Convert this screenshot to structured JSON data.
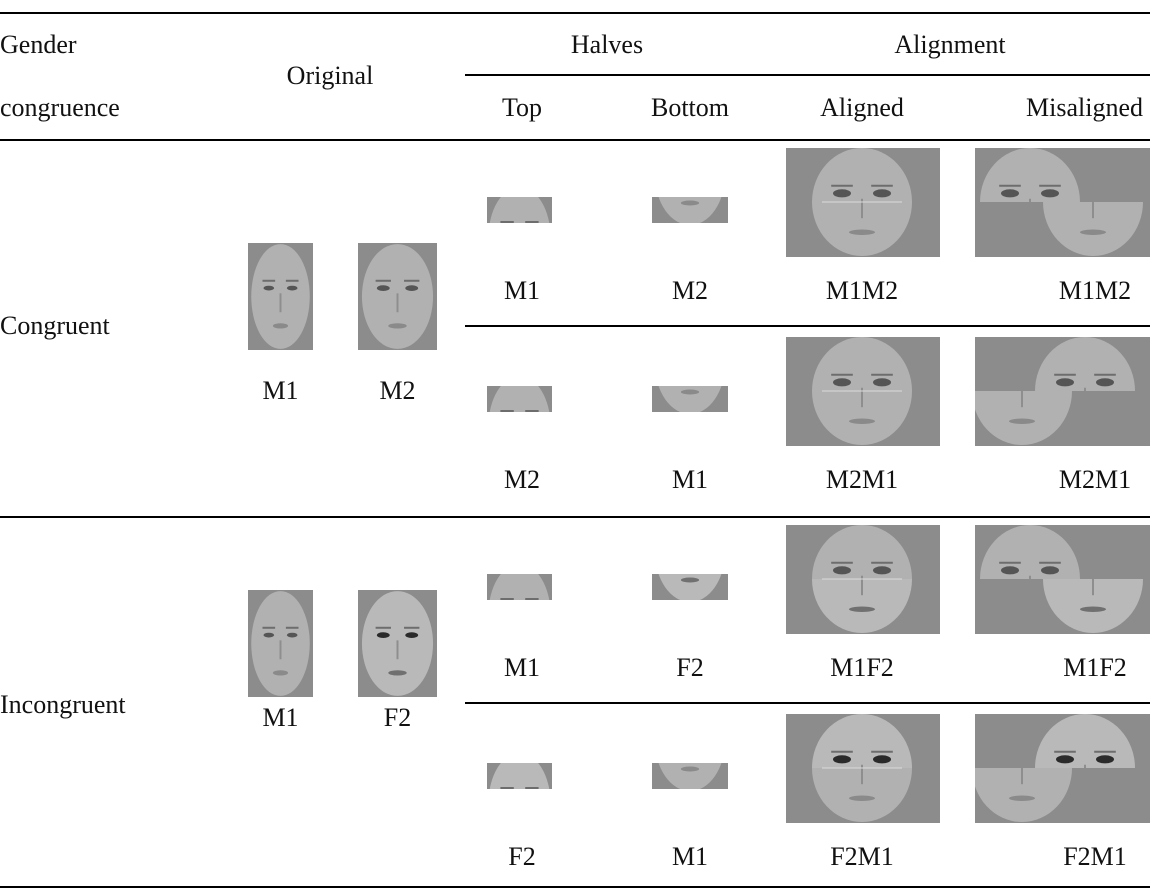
{
  "header": {
    "gender_congruence": [
      "Gender",
      "congruence"
    ],
    "original": "Original",
    "halves": "Halves",
    "alignment": "Alignment",
    "subheaders": [
      "Top",
      "Bottom",
      "Aligned",
      "Misaligned"
    ]
  },
  "groups": [
    {
      "label": "Congruent",
      "originals": [
        "M1",
        "M2"
      ],
      "rows": [
        [
          "M1",
          "M2",
          "M1M2",
          "M1M2"
        ],
        [
          "M2",
          "M1",
          "M2M1",
          "M2M1"
        ]
      ]
    },
    {
      "label": "Incongruent",
      "originals": [
        "M1",
        "F2"
      ],
      "rows": [
        [
          "M1",
          "F2",
          "M1F2",
          "M1F2"
        ],
        [
          "F2",
          "M1",
          "F2M1",
          "F2M1"
        ]
      ]
    }
  ]
}
